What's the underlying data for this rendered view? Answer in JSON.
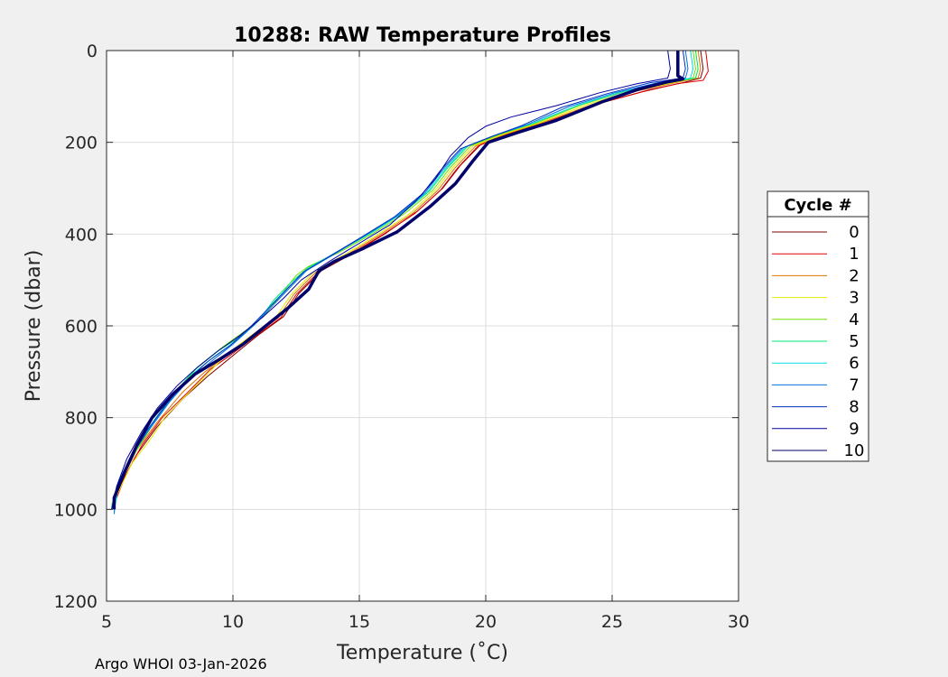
{
  "chart_data": {
    "type": "line",
    "title": "10288: RAW Temperature Profiles",
    "xlabel": "Temperature (˚C)",
    "ylabel": "Pressure (dbar)",
    "xlim": [
      5,
      30
    ],
    "ylim": [
      0,
      1200
    ],
    "y_reversed": true,
    "grid": true,
    "xticks": [
      5,
      10,
      15,
      20,
      25,
      30
    ],
    "yticks": [
      0,
      200,
      400,
      600,
      800,
      1000,
      1200
    ],
    "legend": {
      "title": "Cycle #",
      "placement": "right-outside"
    },
    "series": [
      {
        "name": "0",
        "color": "#800000",
        "width": 1,
        "points": [
          [
            28.5,
            0
          ],
          [
            28.6,
            40
          ],
          [
            28.5,
            60
          ],
          [
            27.8,
            70
          ],
          [
            26.5,
            85
          ],
          [
            24.5,
            115
          ],
          [
            22.5,
            155
          ],
          [
            21.0,
            180
          ],
          [
            19.8,
            205
          ],
          [
            19.0,
            250
          ],
          [
            18.3,
            300
          ],
          [
            17.3,
            350
          ],
          [
            16.0,
            400
          ],
          [
            14.8,
            440
          ],
          [
            13.5,
            480
          ],
          [
            12.6,
            530
          ],
          [
            12.0,
            580
          ],
          [
            11.0,
            620
          ],
          [
            10.0,
            665
          ],
          [
            9.0,
            710
          ],
          [
            8.0,
            760
          ],
          [
            7.0,
            820
          ],
          [
            6.2,
            880
          ],
          [
            5.7,
            930
          ],
          [
            5.3,
            980
          ],
          [
            5.2,
            1000
          ]
        ]
      },
      {
        "name": "1",
        "color": "#e00000",
        "width": 1,
        "points": [
          [
            28.7,
            0
          ],
          [
            28.8,
            45
          ],
          [
            28.6,
            65
          ],
          [
            27.6,
            72
          ],
          [
            26.2,
            90
          ],
          [
            24.3,
            118
          ],
          [
            22.3,
            158
          ],
          [
            20.9,
            182
          ],
          [
            19.7,
            208
          ],
          [
            18.9,
            255
          ],
          [
            18.2,
            305
          ],
          [
            17.2,
            355
          ],
          [
            15.9,
            402
          ],
          [
            14.7,
            442
          ],
          [
            13.4,
            482
          ],
          [
            12.5,
            532
          ],
          [
            11.9,
            582
          ],
          [
            10.9,
            622
          ],
          [
            10.0,
            660
          ],
          [
            9.1,
            695
          ],
          [
            8.3,
            740
          ],
          [
            7.2,
            800
          ],
          [
            6.4,
            860
          ],
          [
            5.8,
            920
          ],
          [
            5.4,
            975
          ],
          [
            5.2,
            1000
          ]
        ]
      },
      {
        "name": "2",
        "color": "#e07000",
        "width": 1,
        "points": [
          [
            28.4,
            0
          ],
          [
            28.5,
            40
          ],
          [
            28.4,
            60
          ],
          [
            27.5,
            70
          ],
          [
            26.0,
            88
          ],
          [
            24.2,
            118
          ],
          [
            22.2,
            158
          ],
          [
            20.8,
            182
          ],
          [
            19.6,
            208
          ],
          [
            18.8,
            255
          ],
          [
            18.1,
            305
          ],
          [
            17.1,
            355
          ],
          [
            15.8,
            402
          ],
          [
            14.6,
            442
          ],
          [
            13.3,
            482
          ],
          [
            12.4,
            532
          ],
          [
            11.8,
            582
          ],
          [
            10.8,
            622
          ],
          [
            9.8,
            662
          ],
          [
            8.9,
            700
          ],
          [
            8.0,
            745
          ],
          [
            7.0,
            810
          ],
          [
            6.2,
            870
          ],
          [
            5.7,
            925
          ],
          [
            5.3,
            980
          ],
          [
            5.2,
            1000
          ]
        ]
      },
      {
        "name": "3",
        "color": "#e8e800",
        "width": 1,
        "points": [
          [
            28.3,
            0
          ],
          [
            28.4,
            40
          ],
          [
            28.3,
            60
          ],
          [
            27.4,
            70
          ],
          [
            25.8,
            88
          ],
          [
            24.0,
            118
          ],
          [
            22.1,
            158
          ],
          [
            20.7,
            182
          ],
          [
            19.5,
            208
          ],
          [
            18.7,
            255
          ],
          [
            18.0,
            305
          ],
          [
            17.0,
            355
          ],
          [
            15.7,
            402
          ],
          [
            14.5,
            442
          ],
          [
            13.2,
            482
          ],
          [
            12.3,
            532
          ],
          [
            11.7,
            582
          ],
          [
            10.7,
            622
          ],
          [
            9.8,
            660
          ],
          [
            8.9,
            710
          ],
          [
            8.0,
            760
          ],
          [
            7.3,
            800
          ],
          [
            6.7,
            850
          ],
          [
            6.0,
            900
          ],
          [
            5.4,
            970
          ],
          [
            5.2,
            1000
          ]
        ]
      },
      {
        "name": "4",
        "color": "#70e000",
        "width": 1,
        "points": [
          [
            28.2,
            0
          ],
          [
            28.3,
            40
          ],
          [
            28.2,
            60
          ],
          [
            27.3,
            70
          ],
          [
            25.6,
            88
          ],
          [
            23.8,
            118
          ],
          [
            22.0,
            158
          ],
          [
            20.6,
            182
          ],
          [
            19.4,
            208
          ],
          [
            18.6,
            255
          ],
          [
            17.9,
            305
          ],
          [
            16.8,
            355
          ],
          [
            15.5,
            400
          ],
          [
            14.2,
            440
          ],
          [
            13.0,
            470
          ],
          [
            12.5,
            490
          ],
          [
            11.8,
            540
          ],
          [
            11.2,
            580
          ],
          [
            10.5,
            610
          ],
          [
            9.5,
            650
          ],
          [
            8.6,
            690
          ],
          [
            7.8,
            740
          ],
          [
            7.0,
            800
          ],
          [
            6.2,
            870
          ],
          [
            5.6,
            930
          ],
          [
            5.2,
            990
          ]
        ]
      },
      {
        "name": "5",
        "color": "#00e870",
        "width": 1,
        "points": [
          [
            28.3,
            0
          ],
          [
            28.4,
            40
          ],
          [
            28.3,
            60
          ],
          [
            27.2,
            70
          ],
          [
            25.5,
            88
          ],
          [
            23.7,
            118
          ],
          [
            21.9,
            158
          ],
          [
            20.5,
            182
          ],
          [
            19.3,
            208
          ],
          [
            18.5,
            255
          ],
          [
            17.8,
            305
          ],
          [
            16.7,
            355
          ],
          [
            15.4,
            400
          ],
          [
            14.1,
            440
          ],
          [
            13.0,
            472
          ],
          [
            12.3,
            505
          ],
          [
            11.6,
            545
          ],
          [
            11.0,
            590
          ],
          [
            10.4,
            620
          ],
          [
            9.4,
            655
          ],
          [
            8.5,
            695
          ],
          [
            7.7,
            745
          ],
          [
            6.9,
            805
          ],
          [
            6.1,
            875
          ],
          [
            5.5,
            935
          ],
          [
            5.2,
            995
          ]
        ]
      },
      {
        "name": "6",
        "color": "#00e0e0",
        "width": 1,
        "points": [
          [
            28.1,
            0
          ],
          [
            28.2,
            40
          ],
          [
            28.1,
            60
          ],
          [
            27.1,
            70
          ],
          [
            25.4,
            90
          ],
          [
            23.6,
            120
          ],
          [
            21.8,
            160
          ],
          [
            20.4,
            184
          ],
          [
            19.2,
            210
          ],
          [
            18.4,
            258
          ],
          [
            17.7,
            308
          ],
          [
            16.6,
            358
          ],
          [
            15.3,
            402
          ],
          [
            14.0,
            442
          ],
          [
            12.9,
            478
          ],
          [
            12.2,
            515
          ],
          [
            11.5,
            555
          ],
          [
            10.9,
            595
          ],
          [
            10.2,
            630
          ],
          [
            9.3,
            665
          ],
          [
            8.4,
            705
          ],
          [
            7.6,
            755
          ],
          [
            6.8,
            815
          ],
          [
            6.0,
            880
          ],
          [
            5.5,
            940
          ],
          [
            5.3,
            1005
          ]
        ]
      },
      {
        "name": "7",
        "color": "#0070e0",
        "width": 1,
        "points": [
          [
            27.9,
            0
          ],
          [
            28.0,
            40
          ],
          [
            27.9,
            60
          ],
          [
            26.8,
            70
          ],
          [
            25.1,
            92
          ],
          [
            23.3,
            122
          ],
          [
            21.6,
            162
          ],
          [
            20.3,
            186
          ],
          [
            19.1,
            212
          ],
          [
            18.3,
            260
          ],
          [
            17.6,
            310
          ],
          [
            16.5,
            360
          ],
          [
            15.2,
            404
          ],
          [
            14.0,
            444
          ],
          [
            12.9,
            480
          ],
          [
            12.2,
            520
          ],
          [
            11.5,
            560
          ],
          [
            10.8,
            600
          ],
          [
            10.0,
            640
          ],
          [
            9.2,
            675
          ],
          [
            8.3,
            715
          ],
          [
            7.5,
            765
          ],
          [
            6.7,
            825
          ],
          [
            5.9,
            890
          ],
          [
            5.4,
            950
          ],
          [
            5.3,
            1010
          ]
        ]
      },
      {
        "name": "8",
        "color": "#0030c0",
        "width": 1,
        "points": [
          [
            27.8,
            0
          ],
          [
            27.9,
            40
          ],
          [
            27.8,
            60
          ],
          [
            26.5,
            70
          ],
          [
            24.8,
            94
          ],
          [
            23.0,
            124
          ],
          [
            21.4,
            164
          ],
          [
            20.2,
            188
          ],
          [
            19.0,
            214
          ],
          [
            18.2,
            262
          ],
          [
            17.5,
            312
          ],
          [
            16.4,
            362
          ],
          [
            15.1,
            406
          ],
          [
            13.9,
            446
          ],
          [
            12.8,
            482
          ],
          [
            12.1,
            522
          ],
          [
            11.4,
            562
          ],
          [
            10.7,
            602
          ],
          [
            9.9,
            642
          ],
          [
            9.0,
            678
          ],
          [
            8.2,
            718
          ],
          [
            7.4,
            768
          ],
          [
            6.6,
            828
          ],
          [
            5.9,
            892
          ],
          [
            5.4,
            952
          ],
          [
            5.2,
            1000
          ]
        ]
      },
      {
        "name": "9",
        "color": "#0000a0",
        "width": 1,
        "points": [
          [
            27.2,
            0
          ],
          [
            27.3,
            40
          ],
          [
            27.2,
            60
          ],
          [
            26.0,
            72
          ],
          [
            24.5,
            92
          ],
          [
            22.8,
            120
          ],
          [
            21.0,
            145
          ],
          [
            20.0,
            165
          ],
          [
            19.3,
            190
          ],
          [
            18.6,
            230
          ],
          [
            18.0,
            280
          ],
          [
            17.2,
            330
          ],
          [
            16.2,
            380
          ],
          [
            15.0,
            420
          ],
          [
            13.8,
            460
          ],
          [
            12.7,
            500
          ],
          [
            12.0,
            540
          ],
          [
            11.2,
            580
          ],
          [
            10.3,
            620
          ],
          [
            9.4,
            655
          ],
          [
            8.6,
            690
          ],
          [
            7.8,
            730
          ],
          [
            7.0,
            780
          ],
          [
            6.4,
            830
          ],
          [
            5.8,
            890
          ],
          [
            5.4,
            950
          ],
          [
            5.2,
            1000
          ]
        ]
      },
      {
        "name": "10",
        "color": "#00006a",
        "width": 3.5,
        "points": [
          [
            27.6,
            0
          ],
          [
            27.6,
            55
          ],
          [
            27.8,
            62
          ],
          [
            27.2,
            68
          ],
          [
            26.0,
            85
          ],
          [
            24.6,
            112
          ],
          [
            22.8,
            152
          ],
          [
            21.3,
            178
          ],
          [
            20.1,
            200
          ],
          [
            19.5,
            240
          ],
          [
            18.8,
            290
          ],
          [
            17.8,
            340
          ],
          [
            16.5,
            395
          ],
          [
            15.2,
            430
          ],
          [
            14.0,
            460
          ],
          [
            13.4,
            480
          ],
          [
            13.0,
            520
          ],
          [
            12.2,
            560
          ],
          [
            11.3,
            600
          ],
          [
            10.4,
            640
          ],
          [
            9.5,
            672
          ],
          [
            8.5,
            705
          ],
          [
            7.6,
            750
          ],
          [
            6.8,
            800
          ],
          [
            6.2,
            860
          ],
          [
            5.7,
            920
          ],
          [
            5.3,
            975
          ],
          [
            5.3,
            1000
          ]
        ]
      }
    ]
  },
  "footer": {
    "text": "Argo WHOI 03-Jan-2026"
  }
}
